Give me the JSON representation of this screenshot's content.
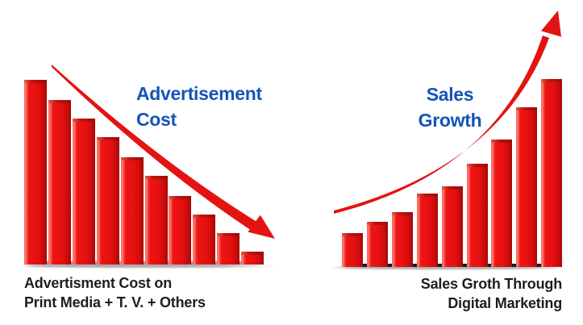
{
  "page": {
    "background": "#ffffff",
    "description": "Infographic comparing falling advertisement cost on traditional media with rising sales growth through digital marketing"
  },
  "colors": {
    "bar_red": "#e81010",
    "bar_dark": "#a30707",
    "bar_highlight": "#ff8478",
    "top_face": "#c01412",
    "arrow_red": "#e41312",
    "title_blue": "#1355b7",
    "text_black": "#1e1e1e",
    "shadow_gray": "#9c9c9c"
  },
  "chart_data": [
    {
      "type": "bar",
      "panel": "left",
      "title": "Advertisement Cost",
      "title_lines": [
        "Advertisement",
        "Cost"
      ],
      "caption_lines": [
        "Advertisment Cost on",
        "Print Media + T. V. + Others"
      ],
      "bar_count": 10,
      "values": [
        100,
        89,
        79,
        69,
        58,
        48,
        37,
        27,
        17,
        7
      ],
      "value_note": "relative bar heights in % of tallest bar; image shows no axes, ticks or numeric labels",
      "trend_arrow": "red curved arrow sloping down to the lower right",
      "bar_color": "#e81010",
      "legend": "none",
      "axes": "none"
    },
    {
      "type": "bar",
      "panel": "right",
      "title": "Sales Growth",
      "title_lines": [
        "Sales",
        "Growth"
      ],
      "caption_lines": [
        "Sales Groth Through",
        "Digital Marketing"
      ],
      "bar_count": 9,
      "values": [
        18,
        24,
        29,
        39,
        43,
        55,
        68,
        85,
        100
      ],
      "value_note": "relative bar heights in % of tallest bar; image shows no axes, ticks or numeric labels",
      "trend_arrow": "red curved arrow rising steeply to the upper right",
      "bar_color": "#e81010",
      "legend": "none",
      "axes": "none"
    }
  ]
}
